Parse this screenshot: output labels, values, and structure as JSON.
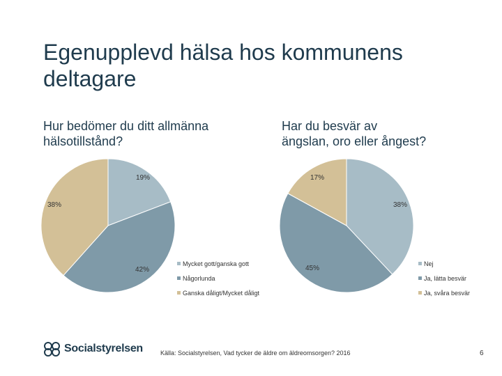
{
  "title": "Egenupplevd hälsa hos kommunens deltagare",
  "left_question": "Hur bedömer du ditt allmänna\nhälsotillstånd?",
  "right_question": "Har du besvär av\nängslan, oro eller ångest?",
  "source": "Källa: Socialstyrelsen, Vad tycker de äldre om äldreomsorgen? 2016",
  "page_number": "6",
  "logo_text": "Socialstyrelsen",
  "colors": {
    "accent_light": "#a7bcc6",
    "accent_mid": "#7f9aa8",
    "accent_tan": "#d3c097"
  },
  "chart_data": [
    {
      "type": "pie",
      "title": "Hur bedömer du ditt allmänna hälsotillstånd?",
      "categories": [
        "Mycket gott/ganska gott",
        "Någorlunda",
        "Ganska dåligt/Mycket dåligt"
      ],
      "values": [
        19,
        42,
        38
      ],
      "labels": [
        "19%",
        "42%",
        "38%"
      ],
      "colors": [
        "#a7bcc6",
        "#7f9aa8",
        "#d3c097"
      ],
      "legend": "right"
    },
    {
      "type": "pie",
      "title": "Har du besvär av ängslan, oro eller ångest?",
      "categories": [
        "Nej",
        "Ja, lätta besvär",
        "Ja, svåra besvär"
      ],
      "values": [
        38,
        45,
        17
      ],
      "labels": [
        "38%",
        "45%",
        "17%"
      ],
      "colors": [
        "#a7bcc6",
        "#7f9aa8",
        "#d3c097"
      ],
      "legend": "right"
    }
  ]
}
